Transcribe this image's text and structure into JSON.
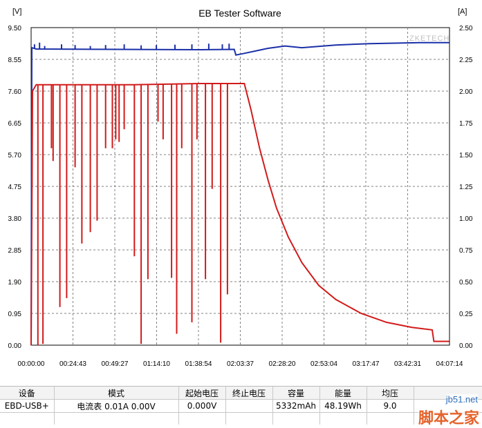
{
  "chart_data": {
    "type": "line",
    "title": "EB Tester Software",
    "left_unit": "[V]",
    "right_unit": "[A]",
    "watermark": "ZKETECH",
    "grid": true,
    "x_ticks": [
      "00:00:00",
      "00:24:43",
      "00:49:27",
      "01:14:10",
      "01:38:54",
      "02:03:37",
      "02:28:20",
      "02:53:04",
      "03:17:47",
      "03:42:31",
      "04:07:14"
    ],
    "xlim_minutes": [
      0,
      247.23
    ],
    "y_left_ticks": [
      "0.00",
      "0.95",
      "1.90",
      "2.85",
      "3.80",
      "4.75",
      "5.70",
      "6.65",
      "7.60",
      "8.55",
      "9.50"
    ],
    "y_left_lim": [
      0,
      9.5
    ],
    "y_right_ticks": [
      "0.00",
      "0.25",
      "0.50",
      "0.75",
      "1.00",
      "1.25",
      "1.50",
      "1.75",
      "2.00",
      "2.25",
      "2.50"
    ],
    "y_right_lim": [
      0,
      2.5
    ],
    "series": [
      {
        "color": "#1a2fa8",
        "axis": "left",
        "points": [
          [
            0,
            0.0
          ],
          [
            0.4,
            8.9
          ],
          [
            3,
            8.86
          ],
          [
            50,
            8.85
          ],
          [
            100,
            8.84
          ],
          [
            120,
            8.85
          ],
          [
            121,
            8.68
          ],
          [
            125,
            8.72
          ],
          [
            140,
            8.88
          ],
          [
            150,
            8.95
          ],
          [
            160,
            8.9
          ],
          [
            180,
            8.98
          ],
          [
            200,
            9.02
          ],
          [
            230,
            9.05
          ],
          [
            247,
            9.05
          ]
        ],
        "spikes": [
          [
            2,
            9.0
          ],
          [
            5,
            9.05
          ],
          [
            8,
            8.95
          ],
          [
            18,
            9.0
          ],
          [
            26,
            8.98
          ],
          [
            35,
            8.95
          ],
          [
            44,
            8.98
          ],
          [
            55,
            9.0
          ],
          [
            65,
            8.97
          ],
          [
            74,
            8.98
          ],
          [
            85,
            8.99
          ],
          [
            95,
            9.0
          ],
          [
            105,
            9.02
          ],
          [
            113,
            9.0
          ],
          [
            117,
            9.02
          ]
        ]
      },
      {
        "color": "#d21a1a",
        "axis": "right",
        "points": [
          [
            0,
            0.0
          ],
          [
            0.8,
            2.0
          ],
          [
            3,
            2.05
          ],
          [
            60,
            2.05
          ],
          [
            100,
            2.06
          ],
          [
            126,
            2.06
          ],
          [
            130,
            1.85
          ],
          [
            135,
            1.55
          ],
          [
            140,
            1.3
          ],
          [
            145,
            1.08
          ],
          [
            152,
            0.85
          ],
          [
            160,
            0.65
          ],
          [
            170,
            0.47
          ],
          [
            180,
            0.36
          ],
          [
            195,
            0.25
          ],
          [
            210,
            0.18
          ],
          [
            225,
            0.14
          ],
          [
            237,
            0.12
          ],
          [
            238,
            0.03
          ],
          [
            247,
            0.03
          ]
        ],
        "dips": [
          [
            0.5,
            1.52
          ],
          [
            4,
            0.0
          ],
          [
            7,
            0.01
          ],
          [
            12,
            1.55
          ],
          [
            13,
            1.45
          ],
          [
            17,
            0.3
          ],
          [
            21,
            0.37
          ],
          [
            26,
            1.4
          ],
          [
            30,
            0.8
          ],
          [
            35,
            0.89
          ],
          [
            39,
            0.98
          ],
          [
            44,
            1.55
          ],
          [
            48,
            1.55
          ],
          [
            50,
            1.62
          ],
          [
            52,
            1.6
          ],
          [
            55,
            1.7
          ],
          [
            61,
            0.7
          ],
          [
            65,
            0.01
          ],
          [
            69,
            0.52
          ],
          [
            75,
            1.76
          ],
          [
            78,
            1.62
          ],
          [
            83,
            0.53
          ],
          [
            86,
            0.09
          ],
          [
            89,
            1.55
          ],
          [
            95,
            0.18
          ],
          [
            98,
            1.62
          ],
          [
            103,
            0.52
          ],
          [
            107,
            1.23
          ],
          [
            112,
            0.02
          ],
          [
            116,
            0.4
          ]
        ]
      }
    ]
  },
  "table": {
    "headers": [
      "设备",
      "模式",
      "起始电压",
      "终止电压",
      "容量",
      "能量",
      "均压"
    ],
    "row": [
      "EBD-USB+",
      "电流表 0.01A  0.00V",
      "0.000V",
      "",
      "5332mAh",
      "48.19Wh",
      "9.0"
    ]
  },
  "watermarks": {
    "line1": "jb51.net",
    "line2": "脚本之家"
  }
}
